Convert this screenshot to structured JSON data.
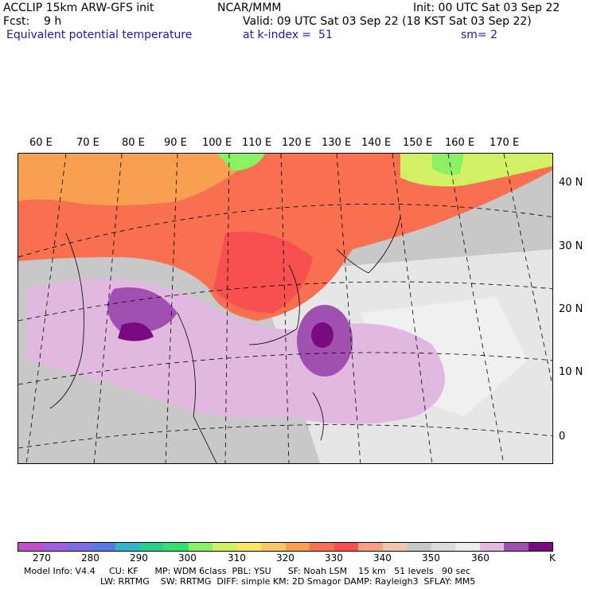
{
  "header": {
    "model": "ACCLIP 15km ARW-GFS init",
    "org": "NCAR/MMM",
    "init": "Init: 00 UTC Sat 03 Sep 22",
    "fcst": "Fcst:    9 h",
    "valid": "Valid: 09 UTC Sat 03 Sep 22 (18 KST Sat 03 Sep 22)",
    "field": "Equivalent potential temperature",
    "level": "at k-index =  51",
    "smooth": "sm= 2"
  },
  "map": {
    "lon_labels": [
      "60 E",
      "70 E",
      "80 E",
      "90 E",
      "100 E",
      "110 E",
      "120 E",
      "130 E",
      "140 E",
      "150 E",
      "160 E",
      "170 E"
    ],
    "lat_labels": [
      "40 N",
      "30 N",
      "20 N",
      "10 N",
      "0"
    ],
    "land_color": "#c8c8c8"
  },
  "colorbar": {
    "colors": [
      "#c050c8",
      "#a060e0",
      "#7c6ee0",
      "#5a78e6",
      "#32b4c8",
      "#2ad08e",
      "#34e070",
      "#8cf064",
      "#d2f064",
      "#f8e664",
      "#f8c864",
      "#f8a050",
      "#f87050",
      "#f85050",
      "#f8a080",
      "#f0c8b0",
      "#c8c8c8",
      "#dcdcdc",
      "#ececec",
      "#e0b8e0",
      "#a050b0",
      "#7a0a80"
    ],
    "ticks": [
      "270",
      "280",
      "290",
      "300",
      "310",
      "320",
      "330",
      "340",
      "350",
      "360"
    ],
    "unit": "K"
  },
  "footer": {
    "line1": "Model Info: V4.4     CU: KF      MP: WDM 6class  PBL: YSU      SF: Noah LSM    15 km   51 levels   90 sec",
    "line2": "LW: RRTMG    SW: RRTMG  DIFF: simple KM: 2D Smagor DAMP: Rayleigh3  SFLAY: MM5"
  }
}
